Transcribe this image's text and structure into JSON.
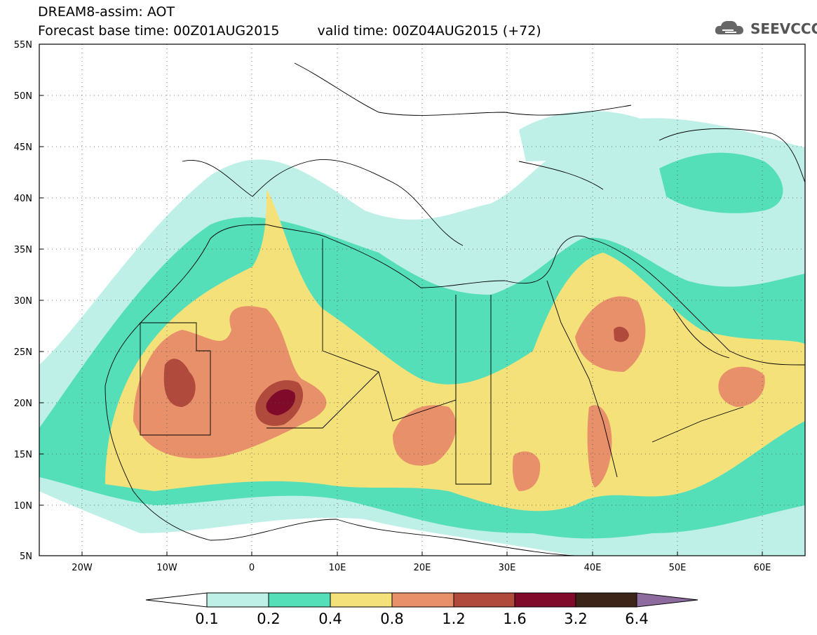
{
  "header": {
    "title": "DREAM8-assim: AOT",
    "base_time": "Forecast base time: 00Z01AUG2015",
    "valid_time": "valid time: 00Z04AUG2015 (+72)"
  },
  "logo": {
    "text": "SEEVCCC",
    "icon": "cloud-icon"
  },
  "map": {
    "variable": "AOT",
    "lat_range": [
      5,
      55
    ],
    "lon_range": [
      -25,
      65
    ],
    "lat_ticks": [
      "55N",
      "50N",
      "45N",
      "40N",
      "35N",
      "30N",
      "25N",
      "20N",
      "15N",
      "10N",
      "5N"
    ],
    "lon_ticks": [
      "20W",
      "10W",
      "0",
      "10E",
      "20E",
      "30E",
      "40E",
      "50E",
      "60E"
    ],
    "grid": "dotted"
  },
  "colorbar": {
    "levels": [
      "0.1",
      "0.2",
      "0.4",
      "0.8",
      "1.2",
      "1.6",
      "3.2",
      "6.4"
    ],
    "colors": [
      "#ffffff",
      "#bff0e8",
      "#55dfb9",
      "#f5e17a",
      "#e8906a",
      "#b04a3c",
      "#800a2a",
      "#3d2418",
      "#8d6b9f"
    ]
  }
}
